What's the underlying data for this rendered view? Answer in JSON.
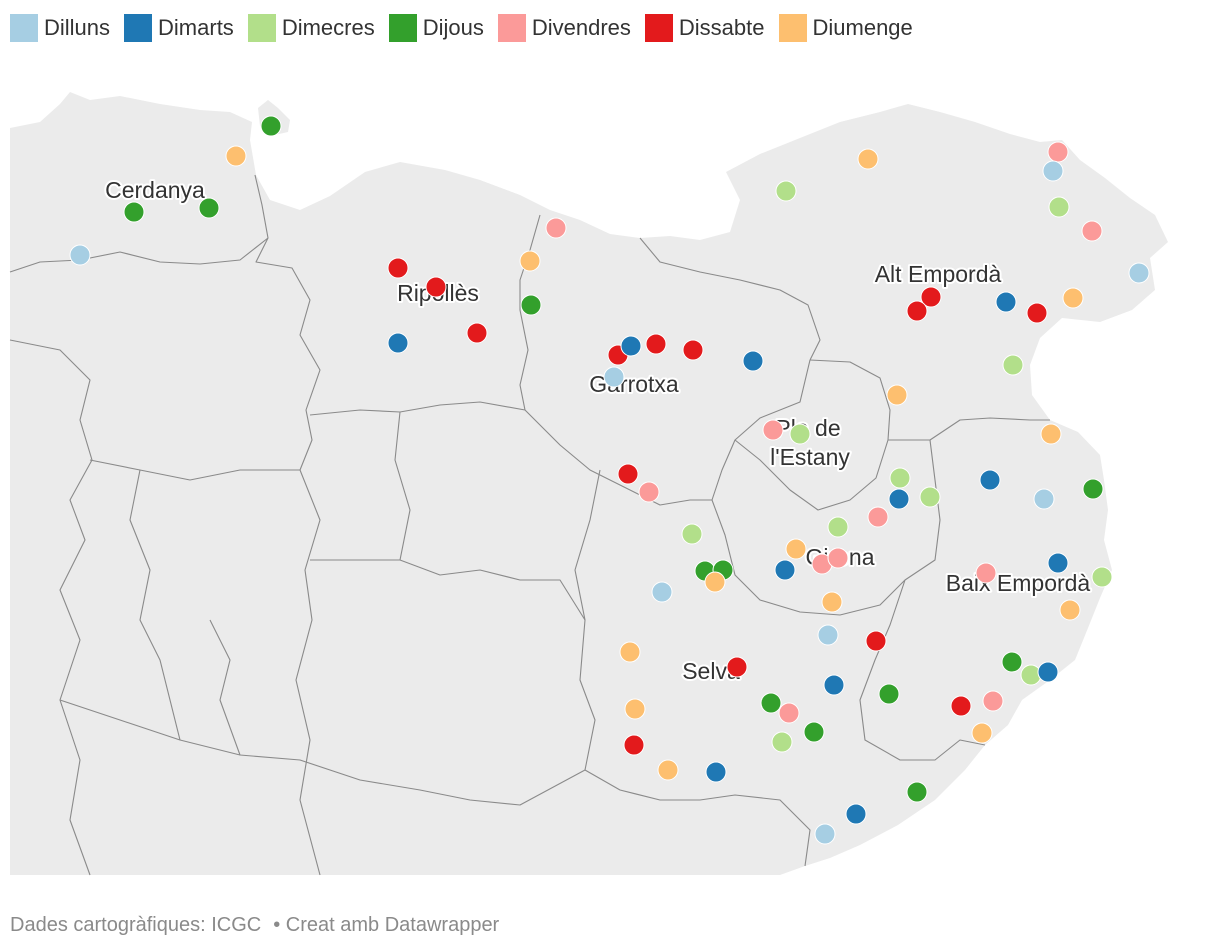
{
  "legend": [
    {
      "day": "Dilluns",
      "color": "#a6cee3"
    },
    {
      "day": "Dimarts",
      "color": "#1f78b4"
    },
    {
      "day": "Dimecres",
      "color": "#b2df8a"
    },
    {
      "day": "Dijous",
      "color": "#33a02c"
    },
    {
      "day": "Divendres",
      "color": "#fb9a99"
    },
    {
      "day": "Dissabte",
      "color": "#e31a1c"
    },
    {
      "day": "Diumenge",
      "color": "#fdbf6f"
    }
  ],
  "map": {
    "land_color": "#ebebeb",
    "border_color": "#8a8a8a",
    "regions": {
      "cerdanya": "Cerdanya",
      "ripolles": "Ripollès",
      "garrotxa": "Garrotxa",
      "alt_emporda": "Alt Empordà",
      "pla_estany_1": "Pla de",
      "pla_estany_2": "l'Estany",
      "girona": "Girona",
      "baix_emporda": "Baix Empordà",
      "selva": "Selva"
    }
  },
  "footer": {
    "source": "Dades cartogràfiques: ICGC",
    "credit": "• Creat amb Datawrapper"
  }
}
